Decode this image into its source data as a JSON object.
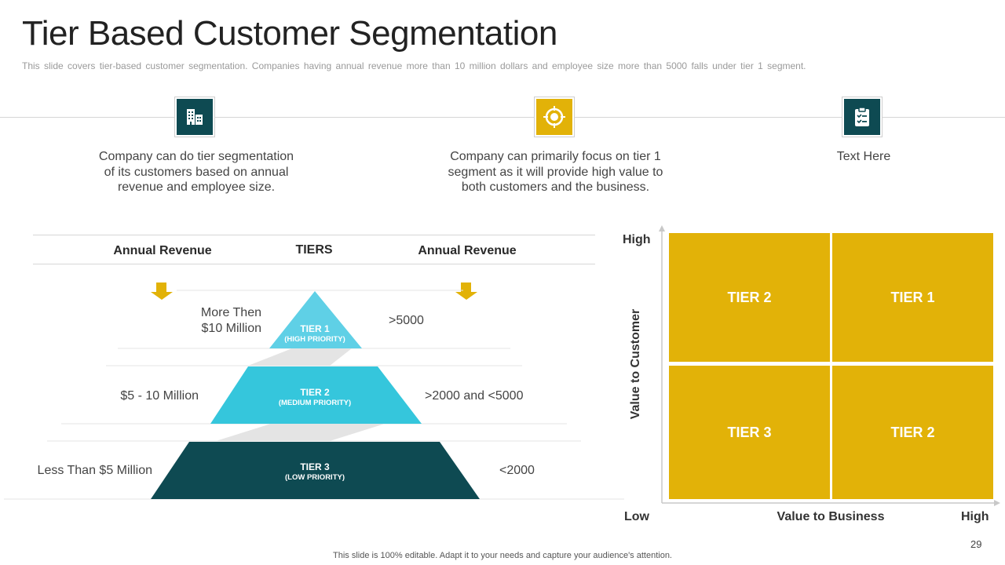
{
  "header": {
    "title": "Tier Based Customer Segmentation",
    "subtitle": "This slide covers tier-based customer segmentation. Companies having annual revenue more than 10 million dollars and employee size more than 5000 falls under tier 1 segment."
  },
  "features": [
    {
      "icon": "building-icon",
      "color": "#0e4a52",
      "text": "Company can do tier segmentation of its customers based on annual revenue and employee size."
    },
    {
      "icon": "target-icon",
      "color": "#e2b208",
      "text": "Company can primarily focus on tier 1 segment as it will provide high value to both customers and the business."
    },
    {
      "icon": "clipboard-icon",
      "color": "#0e4a52",
      "text": "Text Here"
    }
  ],
  "pyramid": {
    "headers": {
      "left": "Annual Revenue",
      "center": "TIERS",
      "right": "Annual Revenue"
    },
    "tiers": [
      {
        "name": "TIER 1",
        "priority": "(HIGH PRIORITY)",
        "left": "More Then $10 Million",
        "right": ">5000",
        "color": "#5fd0e6"
      },
      {
        "name": "TIER 2",
        "priority": "(MEDIUM PRIORITY)",
        "left": "$5 - 10 Million",
        "right": ">2000 and <5000",
        "color": "#35c6dc"
      },
      {
        "name": "TIER 3",
        "priority": "(LOW PRIORITY)",
        "left": "Less Than $5 Million",
        "right": "<2000",
        "color": "#0e4a52"
      }
    ]
  },
  "matrix": {
    "y_label": "Value to Customer",
    "x_label": "Value to Business",
    "y_high": "High",
    "x_low": "Low",
    "x_high": "High",
    "cell_color": "#e2b208",
    "cells": {
      "top_left": "TIER 2",
      "top_right": "TIER 1",
      "bottom_left": "TIER 3",
      "bottom_right": "TIER 2"
    }
  },
  "footer": {
    "note": "This slide is 100% editable. Adapt it to your needs and capture your audience's attention.",
    "page_number": "29"
  }
}
